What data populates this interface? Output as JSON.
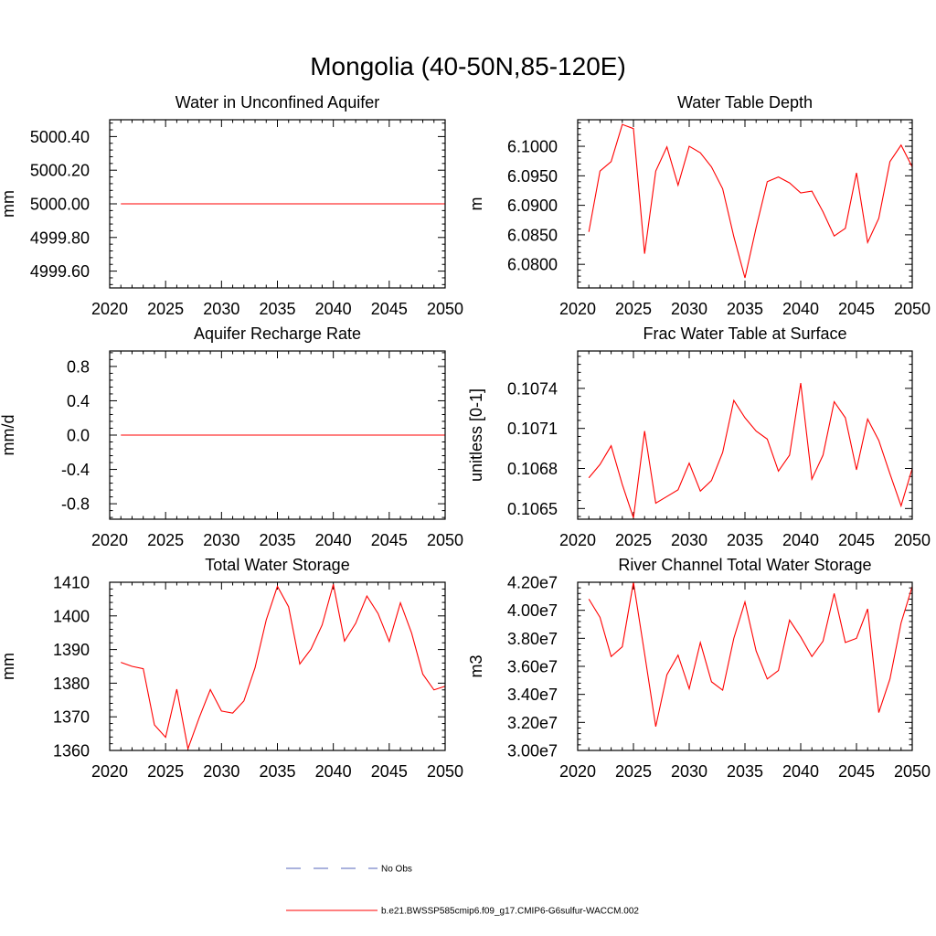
{
  "figure_title": "Mongolia (40-50N,85-120E)",
  "legend": [
    {
      "label": "No Obs",
      "color": "#5566bb",
      "style": "dashed"
    },
    {
      "label": "b.e21.BWSSP585cmip6.f09_g17.CMIP6-G6sulfur-WACCM.002",
      "color": "#ff0000",
      "style": "solid"
    }
  ],
  "chart_data": [
    {
      "type": "line",
      "title": "Water in Unconfined Aquifer",
      "ylabel": "mm",
      "xlim": [
        2020,
        2050
      ],
      "ylim": [
        4999.5,
        5000.5
      ],
      "xticks": [
        2020,
        2025,
        2030,
        2035,
        2040,
        2045,
        2050
      ],
      "yticks": [
        4999.6,
        4999.8,
        5000.0,
        5000.2,
        5000.4
      ],
      "ytick_labels": [
        "4999.60",
        "4999.80",
        "5000.00",
        "5000.20",
        "5000.40"
      ],
      "x": [
        2021,
        2022,
        2023,
        2024,
        2025,
        2026,
        2027,
        2028,
        2029,
        2030,
        2031,
        2032,
        2033,
        2034,
        2035,
        2036,
        2037,
        2038,
        2039,
        2040,
        2041,
        2042,
        2043,
        2044,
        2045,
        2046,
        2047,
        2048,
        2049,
        2050
      ],
      "series": [
        {
          "color": "#ff0000",
          "values": [
            5000,
            5000,
            5000,
            5000,
            5000,
            5000,
            5000,
            5000,
            5000,
            5000,
            5000,
            5000,
            5000,
            5000,
            5000,
            5000,
            5000,
            5000,
            5000,
            5000,
            5000,
            5000,
            5000,
            5000,
            5000,
            5000,
            5000,
            5000,
            5000,
            5000
          ]
        }
      ]
    },
    {
      "type": "line",
      "title": "Water Table Depth",
      "ylabel": "m",
      "xlim": [
        2020,
        2050
      ],
      "ylim": [
        6.076,
        6.1045
      ],
      "xticks": [
        2020,
        2025,
        2030,
        2035,
        2040,
        2045,
        2050
      ],
      "yticks": [
        6.08,
        6.085,
        6.09,
        6.095,
        6.1
      ],
      "ytick_labels": [
        "6.0800",
        "6.0850",
        "6.0900",
        "6.0950",
        "6.1000"
      ],
      "x": [
        2021,
        2022,
        2023,
        2024,
        2025,
        2026,
        2027,
        2028,
        2029,
        2030,
        2031,
        2032,
        2033,
        2034,
        2035,
        2036,
        2037,
        2038,
        2039,
        2040,
        2041,
        2042,
        2043,
        2044,
        2045,
        2046,
        2047,
        2048,
        2049,
        2050
      ],
      "series": [
        {
          "color": "#ff0000",
          "values": [
            6.0855,
            6.0958,
            6.0974,
            6.1037,
            6.103,
            6.0818,
            6.0958,
            6.0999,
            6.0934,
            6.1,
            6.0989,
            6.0965,
            6.0928,
            6.0847,
            6.0777,
            6.0862,
            6.094,
            6.0948,
            6.0938,
            6.0921,
            6.0924,
            6.0889,
            6.0848,
            6.0861,
            6.0955,
            6.0837,
            6.0878,
            6.0974,
            6.1002,
            6.0965
          ]
        }
      ]
    },
    {
      "type": "line",
      "title": "Aquifer Recharge Rate",
      "ylabel": "mm/d",
      "xlim": [
        2020,
        2050
      ],
      "ylim": [
        -0.98,
        0.98
      ],
      "xticks": [
        2020,
        2025,
        2030,
        2035,
        2040,
        2045,
        2050
      ],
      "yticks": [
        -0.8,
        -0.4,
        0.0,
        0.4,
        0.8
      ],
      "ytick_labels": [
        "-0.8",
        "-0.4",
        "0.0",
        "0.4",
        "0.8"
      ],
      "x": [
        2021,
        2022,
        2023,
        2024,
        2025,
        2026,
        2027,
        2028,
        2029,
        2030,
        2031,
        2032,
        2033,
        2034,
        2035,
        2036,
        2037,
        2038,
        2039,
        2040,
        2041,
        2042,
        2043,
        2044,
        2045,
        2046,
        2047,
        2048,
        2049,
        2050
      ],
      "series": [
        {
          "color": "#ff0000",
          "values": [
            0,
            0,
            0,
            0,
            0,
            0,
            0,
            0,
            0,
            0,
            0,
            0,
            0,
            0,
            0,
            0,
            0,
            0,
            0,
            0,
            0,
            0,
            0,
            0,
            0,
            0,
            0,
            0,
            0,
            0
          ]
        }
      ]
    },
    {
      "type": "line",
      "title": "Frac Water Table at Surface",
      "ylabel": "unitless [0-1]",
      "xlim": [
        2020,
        2050
      ],
      "ylim": [
        0.10642,
        0.10768
      ],
      "xticks": [
        2020,
        2025,
        2030,
        2035,
        2040,
        2045,
        2050
      ],
      "yticks": [
        0.1065,
        0.1068,
        0.1071,
        0.1074
      ],
      "ytick_labels": [
        "0.1065",
        "0.1068",
        "0.1071",
        "0.1074"
      ],
      "x": [
        2021,
        2022,
        2023,
        2024,
        2025,
        2026,
        2027,
        2028,
        2029,
        2030,
        2031,
        2032,
        2033,
        2034,
        2035,
        2036,
        2037,
        2038,
        2039,
        2040,
        2041,
        2042,
        2043,
        2044,
        2045,
        2046,
        2047,
        2048,
        2049,
        2050
      ],
      "series": [
        {
          "color": "#ff0000",
          "values": [
            0.10673,
            0.10683,
            0.10697,
            0.10668,
            0.10643,
            0.10708,
            0.10654,
            0.10659,
            0.10664,
            0.10684,
            0.10663,
            0.10671,
            0.10692,
            0.10731,
            0.10718,
            0.10708,
            0.10702,
            0.10678,
            0.1069,
            0.10744,
            0.10672,
            0.1069,
            0.1073,
            0.10718,
            0.10679,
            0.10717,
            0.10701,
            0.10676,
            0.10652,
            0.1068
          ]
        }
      ]
    },
    {
      "type": "line",
      "title": "Total Water Storage",
      "ylabel": "mm",
      "xlim": [
        2020,
        2050
      ],
      "ylim": [
        1360,
        1410
      ],
      "xticks": [
        2020,
        2025,
        2030,
        2035,
        2040,
        2045,
        2050
      ],
      "yticks": [
        1360,
        1370,
        1380,
        1390,
        1400,
        1410
      ],
      "ytick_labels": [
        "1360",
        "1370",
        "1380",
        "1390",
        "1400",
        "1410"
      ],
      "x": [
        2021,
        2022,
        2023,
        2024,
        2025,
        2026,
        2027,
        2028,
        2029,
        2030,
        2031,
        2032,
        2033,
        2034,
        2035,
        2036,
        2037,
        2038,
        2039,
        2040,
        2041,
        2042,
        2043,
        2044,
        2045,
        2046,
        2047,
        2048,
        2049,
        2050
      ],
      "series": [
        {
          "color": "#ff0000",
          "values": [
            1386.2,
            1385.0,
            1384.3,
            1367.6,
            1363.9,
            1378.2,
            1360.5,
            1369.7,
            1378.1,
            1371.7,
            1371.1,
            1374.7,
            1384.6,
            1398.8,
            1408.8,
            1402.7,
            1385.7,
            1390.1,
            1397.3,
            1409.4,
            1392.5,
            1397.8,
            1405.9,
            1400.7,
            1392.4,
            1403.9,
            1394.9,
            1382.7,
            1378.0,
            1379.1
          ]
        }
      ]
    },
    {
      "type": "line",
      "title": "River Channel Total Water Storage",
      "ylabel": "m3",
      "xlim": [
        2020,
        2050
      ],
      "ylim": [
        30000000,
        42000000
      ],
      "xticks": [
        2020,
        2025,
        2030,
        2035,
        2040,
        2045,
        2050
      ],
      "yticks": [
        30000000,
        32000000,
        34000000,
        36000000,
        38000000,
        40000000,
        42000000
      ],
      "ytick_labels": [
        "3.00e7",
        "3.20e7",
        "3.40e7",
        "3.60e7",
        "3.80e7",
        "4.00e7",
        "4.20e7"
      ],
      "x": [
        2021,
        2022,
        2023,
        2024,
        2025,
        2026,
        2027,
        2028,
        2029,
        2030,
        2031,
        2032,
        2033,
        2034,
        2035,
        2036,
        2037,
        2038,
        2039,
        2040,
        2041,
        2042,
        2043,
        2044,
        2045,
        2046,
        2047,
        2048,
        2049,
        2050
      ],
      "series": [
        {
          "color": "#ff0000",
          "values": [
            40800000,
            39500000,
            36700000,
            37400000,
            42000000,
            36900000,
            31700000,
            35400000,
            36800000,
            34400000,
            37700000,
            34900000,
            34300000,
            38000000,
            40600000,
            37100000,
            35100000,
            35700000,
            39300000,
            38100000,
            36700000,
            37800000,
            41200000,
            37700000,
            38000000,
            40100000,
            32700000,
            35100000,
            39100000,
            41700000
          ]
        }
      ]
    }
  ]
}
